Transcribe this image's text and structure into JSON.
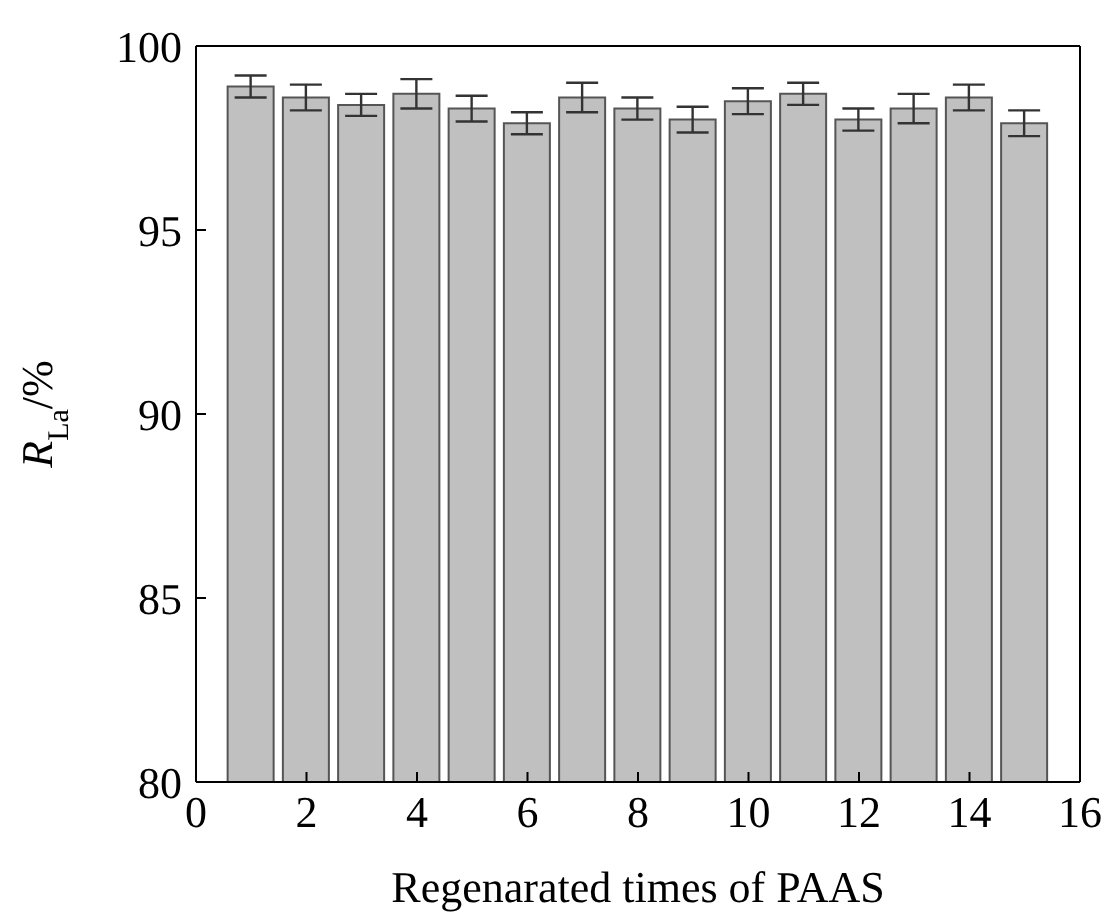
{
  "chart_data": {
    "type": "bar",
    "xlabel": "Regenarated times of PAAS",
    "ylabel": "R$_{La}$/%",
    "x": [
      1,
      2,
      3,
      4,
      5,
      6,
      7,
      8,
      9,
      10,
      11,
      12,
      13,
      14,
      15
    ],
    "values": [
      98.9,
      98.6,
      98.4,
      98.7,
      98.3,
      97.9,
      98.6,
      98.3,
      98.0,
      98.5,
      98.7,
      98.0,
      98.3,
      98.6,
      97.9
    ],
    "errors": [
      0.3,
      0.35,
      0.3,
      0.4,
      0.35,
      0.3,
      0.4,
      0.3,
      0.35,
      0.35,
      0.3,
      0.3,
      0.4,
      0.35,
      0.35
    ],
    "color": "#c0c0c0",
    "xlim": [
      0,
      16
    ],
    "xticks": [
      0,
      2,
      4,
      6,
      8,
      10,
      12,
      14,
      16
    ],
    "ylim": [
      80,
      100
    ],
    "yticks": [
      80,
      85,
      90,
      95,
      100
    ]
  }
}
